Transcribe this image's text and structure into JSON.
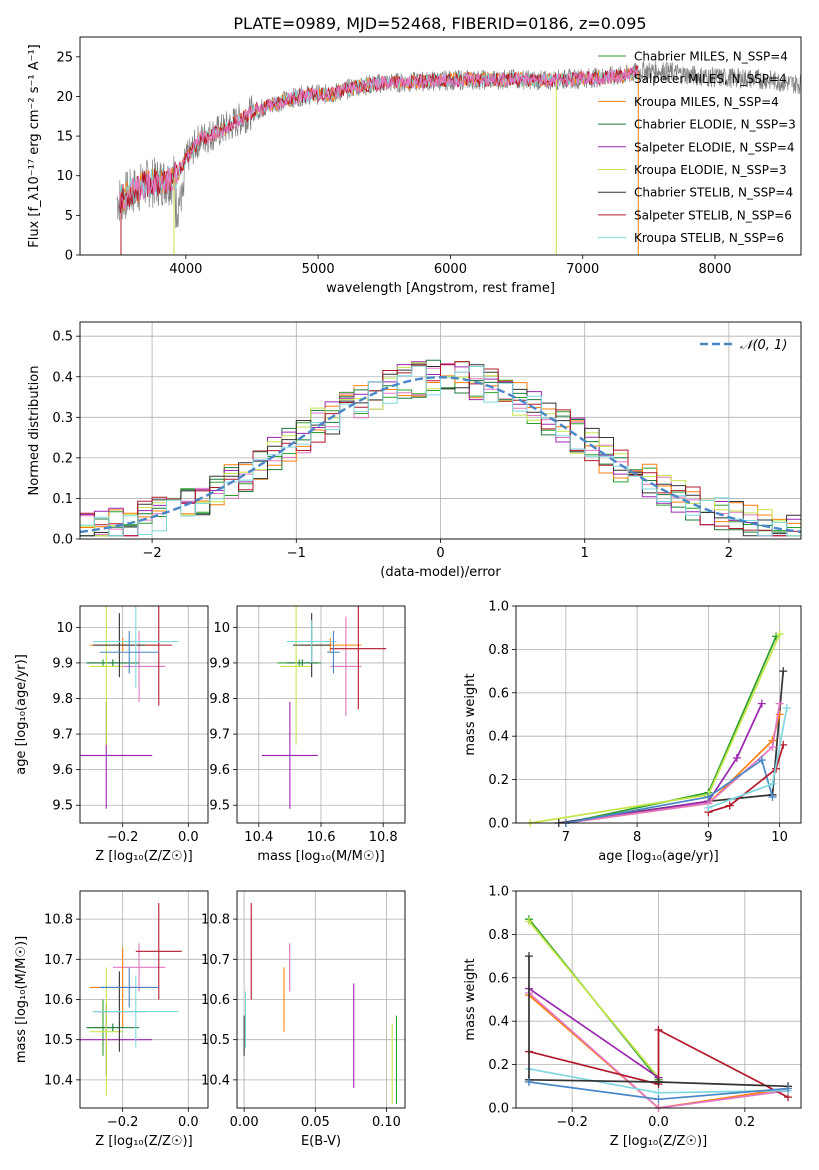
{
  "figure": {
    "title": "PLATE=0989, MJD=52468, FIBERID=0186, z=0.095"
  },
  "colors": {
    "Chabrier MILES": "#2ca02c",
    "Salpeter MILES": "#e377c2",
    "Kroupa MILES": "#ff7f0e",
    "Chabrier ELODIE": "#1b7a3a",
    "Salpeter ELODIE": "#9b27b0",
    "Kroupa ELODIE": "#c4e64a",
    "Chabrier STELIB": "#333333",
    "Salpeter STELIB": "#b2182b",
    "Kroupa STELIB": "#7fd8e0",
    "gaussian": "#4a86c8",
    "data": "#808080",
    "grid": "#b0b0b0"
  },
  "chart_data": [
    {
      "id": "spectrum",
      "type": "line",
      "xlabel": "wavelength [Angstrom, rest frame]",
      "ylabel": "Flux [f_λ10⁻¹⁷ erg cm⁻² s⁻¹ A⁻¹]",
      "xlim": [
        3200,
        8650
      ],
      "ylim": [
        0,
        27.5
      ],
      "xticks": [
        4000,
        5000,
        6000,
        7000,
        8000
      ],
      "yticks": [
        0,
        5,
        10,
        15,
        20,
        25
      ],
      "grid": false,
      "legend_position": "top-right",
      "legend": [
        {
          "label": "Chabrier MILES, N_SSP=4",
          "model": "Chabrier MILES"
        },
        {
          "label": "Salpeter MILES, N_SSP=4",
          "model": "Salpeter MILES"
        },
        {
          "label": "Kroupa MILES, N_SSP=4",
          "model": "Kroupa MILES"
        },
        {
          "label": "Chabrier ELODIE, N_SSP=3",
          "model": "Chabrier ELODIE"
        },
        {
          "label": "Salpeter ELODIE, N_SSP=4",
          "model": "Salpeter ELODIE"
        },
        {
          "label": "Kroupa ELODIE, N_SSP=3",
          "model": "Kroupa ELODIE"
        },
        {
          "label": "Chabrier STELIB, N_SSP=4",
          "model": "Chabrier STELIB"
        },
        {
          "label": "Salpeter STELIB, N_SSP=6",
          "model": "Salpeter STELIB"
        },
        {
          "label": "Kroupa STELIB, N_SSP=6",
          "model": "Kroupa STELIB"
        }
      ],
      "continuum": [
        [
          3500,
          7.0
        ],
        [
          3700,
          9.0
        ],
        [
          3900,
          9.5
        ],
        [
          4000,
          12.0
        ],
        [
          4100,
          14.5
        ],
        [
          4300,
          16.0
        ],
        [
          4500,
          18.0
        ],
        [
          4700,
          19.3
        ],
        [
          4900,
          20.2
        ],
        [
          5100,
          20.3
        ],
        [
          5300,
          21.3
        ],
        [
          5500,
          21.7
        ],
        [
          5700,
          21.8
        ],
        [
          5900,
          22.0
        ],
        [
          6100,
          22.1
        ],
        [
          6300,
          22.1
        ],
        [
          6500,
          22.2
        ],
        [
          6700,
          22.0
        ],
        [
          6900,
          22.2
        ],
        [
          7100,
          22.4
        ],
        [
          7300,
          22.6
        ],
        [
          7450,
          23.2
        ],
        [
          7600,
          23.2
        ],
        [
          7800,
          22.7
        ],
        [
          8000,
          22.4
        ],
        [
          8200,
          22.3
        ],
        [
          8400,
          22.1
        ],
        [
          8600,
          21.6
        ]
      ],
      "data_end": 8650,
      "model_end": 7420,
      "drops": [
        {
          "x": 3510,
          "model": "Salpeter STELIB"
        },
        {
          "x": 3910,
          "model": "Kroupa ELODIE"
        },
        {
          "x": 6800,
          "model": "Kroupa ELODIE"
        },
        {
          "x": 7420,
          "model": "Kroupa MILES"
        }
      ]
    },
    {
      "id": "residuals",
      "type": "bar",
      "xlabel": "(data-model)/error",
      "ylabel": "Normed distribution",
      "xlim": [
        -2.5,
        2.5
      ],
      "ylim": [
        0,
        0.535
      ],
      "xticks": [
        -2,
        -1,
        0,
        1,
        2
      ],
      "xtick_labels": [
        "−2",
        "−1",
        "0",
        "1",
        "2"
      ],
      "yticks": [
        0.0,
        0.1,
        0.2,
        0.3,
        0.4,
        0.5
      ],
      "grid": true,
      "bin_width": 0.1,
      "legend_position": "top-right",
      "gaussian_label": "𝒩(0, 1)"
    },
    {
      "id": "age-vs-Z",
      "type": "scatter",
      "xlabel": "Z [log₁₀(Z/Z☉)]",
      "ylabel": "age  [log₁₀(age/yr)]",
      "xlim": [
        -0.33,
        0.06
      ],
      "ylim": [
        9.45,
        10.06
      ],
      "xticks": [
        -0.2,
        0.0
      ],
      "xtick_labels": [
        "−0.2",
        "0.0"
      ],
      "yticks": [
        9.5,
        9.6,
        9.7,
        9.8,
        9.9,
        10.0
      ],
      "grid": true,
      "points": [
        {
          "model": "Chabrier MILES",
          "x": -0.26,
          "xerr": 0.05,
          "y": 9.9,
          "yerr": 0.01
        },
        {
          "model": "Salpeter MILES",
          "x": -0.15,
          "xerr": 0.08,
          "y": 9.89,
          "yerr": 0.1
        },
        {
          "model": "Kroupa MILES",
          "x": -0.2,
          "xerr": 0.1,
          "y": 9.95,
          "yerr": 0.02
        },
        {
          "model": "Chabrier ELODIE",
          "x": -0.23,
          "xerr": 0.08,
          "y": 9.9,
          "yerr": 0.01
        },
        {
          "model": "Salpeter ELODIE",
          "x": -0.25,
          "xerr": 0.14,
          "y": 9.64,
          "yerr": 0.15
        },
        {
          "model": "Kroupa ELODIE",
          "x": -0.25,
          "xerr": 0.05,
          "y": 9.89,
          "yerr": 0.22
        },
        {
          "model": "Chabrier STELIB",
          "x": -0.21,
          "xerr": 0.08,
          "y": 9.95,
          "yerr": 0.09
        },
        {
          "model": "Salpeter STELIB",
          "x": -0.09,
          "xerr": 0.04,
          "y": 9.95,
          "yerr": 0.17
        },
        {
          "model": "Kroupa STELIB",
          "x": -0.16,
          "xerr": 0.13,
          "y": 9.96,
          "yerr": 0.13
        },
        {
          "model": "Blue",
          "x": -0.18,
          "xerr": 0.09,
          "y": 9.93,
          "yerr": 0.06
        }
      ]
    },
    {
      "id": "age-vs-mass",
      "type": "scatter",
      "xlabel": "mass [log₁₀(M/M☉)]",
      "ylabel": "",
      "xlim": [
        10.33,
        10.87
      ],
      "ylim": [
        9.45,
        10.06
      ],
      "xticks": [
        10.4,
        10.6,
        10.8
      ],
      "yticks": [
        9.5,
        9.6,
        9.7,
        9.8,
        9.9,
        10.0
      ],
      "grid": true,
      "points": [
        {
          "model": "Chabrier MILES",
          "x": 10.53,
          "xerr": 0.07,
          "y": 9.9,
          "yerr": 0.01
        },
        {
          "model": "Salpeter MILES",
          "x": 10.68,
          "xerr": 0.05,
          "y": 9.89,
          "yerr": 0.14
        },
        {
          "model": "Kroupa MILES",
          "x": 10.63,
          "xerr": 0.1,
          "y": 9.95,
          "yerr": 0.02
        },
        {
          "model": "Chabrier ELODIE",
          "x": 10.54,
          "xerr": 0.05,
          "y": 9.9,
          "yerr": 0.01
        },
        {
          "model": "Salpeter ELODIE",
          "x": 10.5,
          "xerr": 0.09,
          "y": 9.64,
          "yerr": 0.15
        },
        {
          "model": "Kroupa ELODIE",
          "x": 10.52,
          "xerr": 0.05,
          "y": 9.89,
          "yerr": 0.22
        },
        {
          "model": "Chabrier STELIB",
          "x": 10.57,
          "xerr": 0.06,
          "y": 9.95,
          "yerr": 0.09
        },
        {
          "model": "Salpeter STELIB",
          "x": 10.72,
          "xerr": 0.09,
          "y": 9.94,
          "yerr": 0.17
        },
        {
          "model": "Kroupa STELIB",
          "x": 10.57,
          "xerr": 0.08,
          "y": 9.96,
          "yerr": 0.06
        },
        {
          "model": "Blue",
          "x": 10.64,
          "xerr": 0.02,
          "y": 9.93,
          "yerr": 0.06
        }
      ]
    },
    {
      "id": "weight-vs-age",
      "type": "line",
      "xlabel": "age  [log₁₀(age/yr)]",
      "ylabel": "mass weight",
      "xlim": [
        6.3,
        10.3
      ],
      "ylim": [
        0.0,
        1.0
      ],
      "xticks": [
        7,
        8,
        9,
        10
      ],
      "yticks": [
        0.0,
        0.2,
        0.4,
        0.6,
        0.8,
        1.0
      ],
      "grid": true,
      "series": [
        {
          "model": "Chabrier MILES",
          "x": [
            7.0,
            9.0,
            9.95
          ],
          "y": [
            0.0,
            0.14,
            0.86
          ]
        },
        {
          "model": "Kroupa ELODIE",
          "x": [
            6.5,
            9.0,
            10.0
          ],
          "y": [
            0.0,
            0.13,
            0.87
          ]
        },
        {
          "model": "Chabrier STELIB",
          "x": [
            6.9,
            9.0,
            9.9,
            10.05
          ],
          "y": [
            0.0,
            0.1,
            0.13,
            0.7
          ]
        },
        {
          "model": "Salpeter ELODIE",
          "x": [
            7.0,
            9.0,
            9.4,
            9.75
          ],
          "y": [
            0.0,
            0.1,
            0.3,
            0.55
          ]
        },
        {
          "model": "Kroupa MILES",
          "x": [
            7.0,
            9.0,
            9.9,
            10.0
          ],
          "y": [
            0.0,
            0.09,
            0.38,
            0.5
          ]
        },
        {
          "model": "Salpeter MILES",
          "x": [
            7.0,
            9.0,
            9.9,
            10.0
          ],
          "y": [
            0.0,
            0.09,
            0.35,
            0.55
          ]
        },
        {
          "model": "Blue",
          "x": [
            7.0,
            9.0,
            9.75,
            9.9
          ],
          "y": [
            0.0,
            0.12,
            0.29,
            0.12
          ]
        },
        {
          "model": "Salpeter STELIB",
          "x": [
            9.0,
            9.3,
            9.95,
            10.05
          ],
          "y": [
            0.05,
            0.08,
            0.25,
            0.36
          ]
        },
        {
          "model": "Kroupa STELIB",
          "x": [
            9.0,
            9.9,
            10.1
          ],
          "y": [
            0.07,
            0.18,
            0.53
          ]
        }
      ]
    },
    {
      "id": "mass-vs-Z",
      "type": "scatter",
      "xlabel": "Z [log₁₀(Z/Z☉)]",
      "ylabel": "mass [log₁₀(M/M☉)]",
      "xlim": [
        -0.33,
        0.06
      ],
      "ylim": [
        10.33,
        10.87
      ],
      "xticks": [
        -0.2,
        0.0
      ],
      "xtick_labels": [
        "−0.2",
        "0.0"
      ],
      "yticks": [
        10.4,
        10.5,
        10.6,
        10.7,
        10.8
      ],
      "grid": true,
      "points": [
        {
          "model": "Chabrier MILES",
          "x": -0.26,
          "xerr": 0.05,
          "y": 10.53,
          "yerr": 0.07
        },
        {
          "model": "Salpeter MILES",
          "x": -0.15,
          "xerr": 0.08,
          "y": 10.68,
          "yerr": 0.06
        },
        {
          "model": "Kroupa MILES",
          "x": -0.2,
          "xerr": 0.1,
          "y": 10.63,
          "yerr": 0.1
        },
        {
          "model": "Chabrier ELODIE",
          "x": -0.23,
          "xerr": 0.08,
          "y": 10.53,
          "yerr": 0.01
        },
        {
          "model": "Salpeter ELODIE",
          "x": -0.25,
          "xerr": 0.14,
          "y": 10.5,
          "yerr": 0.09
        },
        {
          "model": "Kroupa ELODIE",
          "x": -0.25,
          "xerr": 0.05,
          "y": 10.52,
          "yerr": 0.16
        },
        {
          "model": "Chabrier STELIB",
          "x": -0.21,
          "xerr": 0.08,
          "y": 10.57,
          "yerr": 0.1
        },
        {
          "model": "Salpeter STELIB",
          "x": -0.09,
          "xerr": 0.07,
          "y": 10.72,
          "yerr": 0.12
        },
        {
          "model": "Kroupa STELIB",
          "x": -0.16,
          "xerr": 0.13,
          "y": 10.57,
          "yerr": 0.09
        },
        {
          "model": "Blue",
          "x": -0.18,
          "xerr": 0.09,
          "y": 10.63,
          "yerr": 0.05
        }
      ]
    },
    {
      "id": "mass-vs-EBV",
      "type": "scatter",
      "xlabel": "E(B-V)",
      "ylabel": "",
      "xlim": [
        -0.005,
        0.113
      ],
      "ylim": [
        10.33,
        10.87
      ],
      "xticks": [
        0.0,
        0.05,
        0.1
      ],
      "xtick_labels": [
        "0.00",
        "0.05",
        "0.10"
      ],
      "yticks": [
        10.4,
        10.5,
        10.6,
        10.7,
        10.8
      ],
      "grid": true,
      "points": [
        {
          "model": "Chabrier STELIB",
          "x": 0.0,
          "y": 10.51,
          "yerr": 0.05
        },
        {
          "model": "Kroupa STELIB",
          "x": 0.001,
          "y": 10.55,
          "yerr": 0.07
        },
        {
          "model": "Salpeter STELIB",
          "x": 0.005,
          "y": 10.72,
          "yerr": 0.12
        },
        {
          "model": "Kroupa MILES",
          "x": 0.028,
          "y": 10.6,
          "yerr": 0.08
        },
        {
          "model": "Salpeter MILES",
          "x": 0.032,
          "y": 10.68,
          "yerr": 0.06
        },
        {
          "model": "Salpeter ELODIE",
          "x": 0.077,
          "y": 10.51,
          "yerr": 0.13
        },
        {
          "model": "Kroupa ELODIE",
          "x": 0.104,
          "y": 10.44,
          "yerr": 0.1
        },
        {
          "model": "Chabrier MILES",
          "x": 0.107,
          "y": 10.45,
          "yerr": 0.11
        }
      ]
    },
    {
      "id": "weight-vs-Z",
      "type": "line",
      "xlabel": "Z [log₁₀(Z/Z☉)]",
      "ylabel": "mass weight",
      "xlim": [
        -0.33,
        0.33
      ],
      "ylim": [
        0.0,
        1.0
      ],
      "xticks": [
        -0.2,
        0.0,
        0.2
      ],
      "xtick_labels": [
        "−0.2",
        "0.0",
        "0.2"
      ],
      "yticks": [
        0.0,
        0.2,
        0.4,
        0.6,
        0.8,
        1.0
      ],
      "grid": true,
      "series": [
        {
          "model": "Chabrier MILES",
          "x": [
            -0.3,
            0.0
          ],
          "y": [
            0.87,
            0.13
          ]
        },
        {
          "model": "Kroupa ELODIE",
          "x": [
            -0.3,
            0.0
          ],
          "y": [
            0.86,
            0.14
          ]
        },
        {
          "model": "Salpeter ELODIE",
          "x": [
            -0.3,
            0.0
          ],
          "y": [
            0.55,
            0.14
          ]
        },
        {
          "model": "Kroupa MILES",
          "x": [
            -0.3,
            0.0,
            0.3
          ],
          "y": [
            0.52,
            0.0,
            0.09
          ]
        },
        {
          "model": "Salpeter MILES",
          "x": [
            -0.3,
            0.0,
            0.3
          ],
          "y": [
            0.53,
            0.0,
            0.08
          ]
        },
        {
          "model": "Salpeter STELIB",
          "x": [
            -0.3,
            0.0,
            0.0,
            0.3
          ],
          "y": [
            0.26,
            0.11,
            0.36,
            0.05
          ]
        },
        {
          "model": "Kroupa STELIB",
          "x": [
            -0.3,
            0.0,
            0.3
          ],
          "y": [
            0.18,
            0.07,
            0.08
          ]
        },
        {
          "model": "Chabrier STELIB",
          "x": [
            -0.3,
            -0.3,
            0.0,
            0.3
          ],
          "y": [
            0.7,
            0.13,
            0.12,
            0.1
          ]
        },
        {
          "model": "Blue",
          "x": [
            -0.3,
            0.0,
            0.3
          ],
          "y": [
            0.12,
            0.04,
            0.09
          ]
        }
      ]
    }
  ]
}
